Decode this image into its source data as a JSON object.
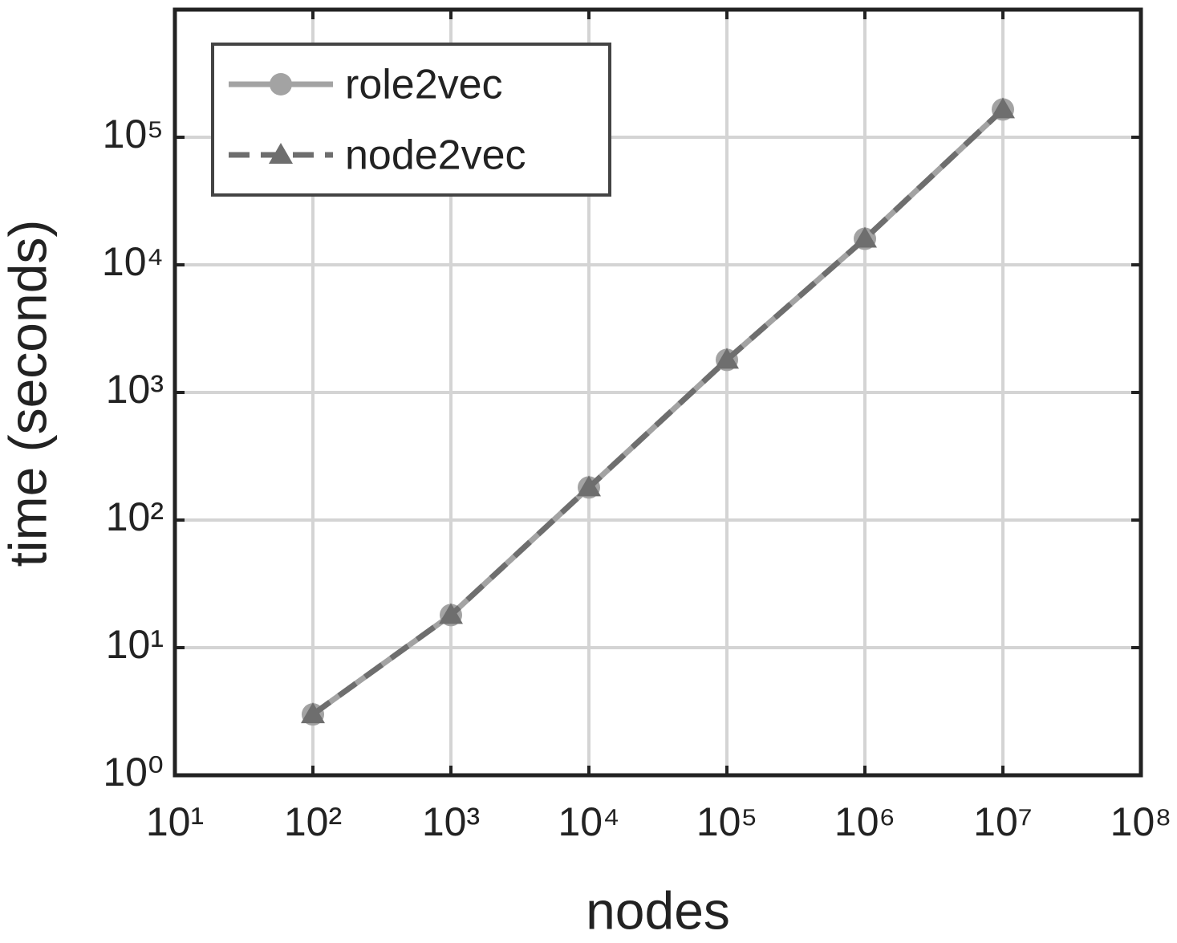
{
  "chart_data": {
    "type": "line",
    "x_label": "nodes",
    "y_label": "time (seconds)",
    "x": [
      100,
      1000,
      10000,
      100000,
      1000000,
      10000000
    ],
    "series": [
      {
        "name": "role2vec",
        "color": "#a3a3a3",
        "line_style": "solid",
        "marker": "circle",
        "values": [
          3,
          18,
          180,
          1800,
          16000,
          165000
        ]
      },
      {
        "name": "node2vec",
        "color": "#6e6e6e",
        "line_style": "dashed",
        "marker": "triangle",
        "values": [
          3,
          18,
          180,
          1800,
          16000,
          165000
        ]
      }
    ],
    "xscale": "log",
    "yscale": "log",
    "xlim": [
      10,
      100000000
    ],
    "xticks": [
      {
        "value": 10,
        "label": "10¹"
      },
      {
        "value": 100,
        "label": "10²"
      },
      {
        "value": 1000,
        "label": "10³"
      },
      {
        "value": 10000,
        "label": "10⁴"
      },
      {
        "value": 100000,
        "label": "10⁵"
      },
      {
        "value": 1000000,
        "label": "10⁶"
      },
      {
        "value": 10000000,
        "label": "10⁷"
      },
      {
        "value": 100000000,
        "label": "10⁸"
      }
    ],
    "ylim": [
      1,
      1000000
    ],
    "yticks": [
      {
        "value": 1,
        "label": "10⁰"
      },
      {
        "value": 10,
        "label": "10¹"
      },
      {
        "value": 100,
        "label": "10²"
      },
      {
        "value": 1000,
        "label": "10³"
      },
      {
        "value": 10000,
        "label": "10⁴"
      },
      {
        "value": 100000,
        "label": "10⁵"
      }
    ],
    "grid": true,
    "legend": "upper left"
  }
}
